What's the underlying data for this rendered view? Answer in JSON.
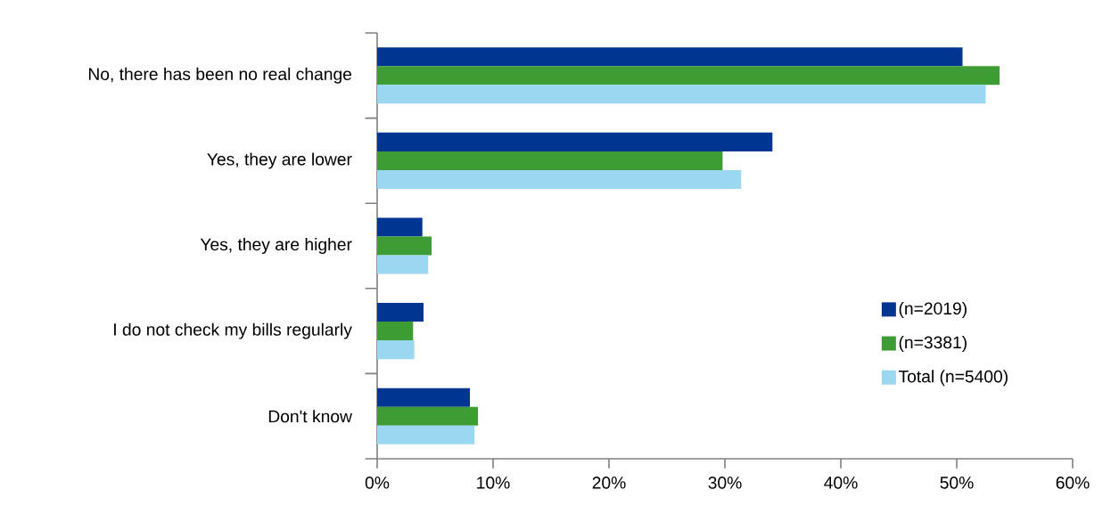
{
  "chart_data": {
    "type": "bar",
    "orientation": "horizontal",
    "categories": [
      "No, there has been no real change",
      "Yes, they are lower",
      "Yes, they are higher",
      "I do not check my bills regularly",
      "Don't know"
    ],
    "series": [
      {
        "name": "(n=2019)",
        "color": "#003591",
        "values": [
          50.5,
          34.1,
          3.9,
          4.0,
          8.0
        ]
      },
      {
        "name": "(n=3381)",
        "color": "#3e9c35",
        "values": [
          53.7,
          29.8,
          4.7,
          3.1,
          8.7
        ]
      },
      {
        "name": "Total (n=5400)",
        "color": "#9bd7f0",
        "values": [
          52.5,
          31.4,
          4.4,
          3.2,
          8.4
        ]
      }
    ],
    "xlim": [
      0,
      60
    ],
    "xticks": [
      {
        "value": 0,
        "label": "0%"
      },
      {
        "value": 10,
        "label": "10%"
      },
      {
        "value": 20,
        "label": "20%"
      },
      {
        "value": 30,
        "label": "30%"
      },
      {
        "value": 40,
        "label": "40%"
      },
      {
        "value": 50,
        "label": "50%"
      },
      {
        "value": 60,
        "label": "60%"
      }
    ],
    "legend": "right"
  }
}
